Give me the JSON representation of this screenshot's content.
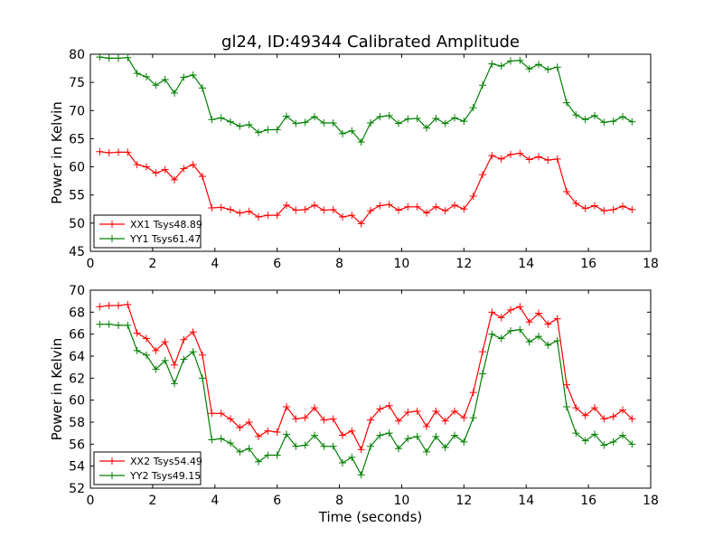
{
  "chart_data": [
    {
      "type": "line",
      "title": "gl24, ID:49344 Calibrated Amplitude",
      "xlabel": "",
      "ylabel": "Power in Kelvin",
      "xlim": [
        0,
        18
      ],
      "ylim": [
        45,
        80
      ],
      "xticks": [
        0,
        2,
        4,
        6,
        8,
        10,
        12,
        14,
        16,
        18
      ],
      "yticks": [
        45,
        50,
        55,
        60,
        65,
        70,
        75,
        80
      ],
      "grid": false,
      "legend_position": "lower-left",
      "x": [
        0.3,
        0.6,
        0.9,
        1.2,
        1.5,
        1.8,
        2.1,
        2.4,
        2.7,
        3.0,
        3.3,
        3.6,
        3.9,
        4.2,
        4.5,
        4.8,
        5.1,
        5.4,
        5.7,
        6.0,
        6.3,
        6.6,
        6.9,
        7.2,
        7.5,
        7.8,
        8.1,
        8.4,
        8.7,
        9.0,
        9.3,
        9.6,
        9.9,
        10.2,
        10.5,
        10.8,
        11.1,
        11.4,
        11.7,
        12.0,
        12.3,
        12.6,
        12.9,
        13.2,
        13.5,
        13.8,
        14.1,
        14.4,
        14.7,
        15.0,
        15.3,
        15.6,
        15.9,
        16.2,
        16.5,
        16.8,
        17.1,
        17.4
      ],
      "series": [
        {
          "name": "XX1 Tsys48.89",
          "color": "#ff0000",
          "values": [
            62.7,
            62.5,
            62.6,
            62.6,
            60.4,
            60.0,
            58.9,
            59.5,
            57.7,
            59.7,
            60.4,
            58.3,
            52.7,
            52.8,
            52.4,
            51.8,
            52.1,
            51.1,
            51.4,
            51.4,
            53.2,
            52.3,
            52.4,
            53.2,
            52.3,
            52.4,
            51.1,
            51.4,
            49.9,
            52.2,
            53.1,
            53.3,
            52.3,
            52.9,
            52.9,
            51.8,
            52.9,
            52.2,
            53.2,
            52.5,
            54.8,
            58.6,
            62.0,
            61.4,
            62.2,
            62.4,
            61.3,
            61.8,
            61.2,
            61.4,
            55.6,
            53.5,
            52.6,
            53.1,
            52.2,
            52.4,
            53.0,
            52.4
          ]
        },
        {
          "name": "YY1 Tsys61.47",
          "color": "#007f00",
          "values": [
            79.5,
            79.3,
            79.3,
            79.4,
            76.6,
            76.0,
            74.5,
            75.5,
            73.1,
            75.9,
            76.3,
            74.0,
            68.4,
            68.7,
            68.0,
            67.2,
            67.5,
            66.1,
            66.6,
            66.6,
            69.0,
            67.7,
            67.9,
            68.9,
            67.8,
            67.8,
            65.9,
            66.4,
            64.4,
            67.8,
            68.9,
            69.1,
            67.7,
            68.5,
            68.6,
            66.9,
            68.6,
            67.7,
            68.7,
            68.1,
            70.5,
            74.5,
            78.3,
            77.9,
            78.8,
            78.9,
            77.4,
            78.2,
            77.3,
            77.7,
            71.4,
            69.2,
            68.4,
            69.1,
            67.9,
            68.1,
            68.9,
            68.0
          ]
        }
      ]
    },
    {
      "type": "line",
      "title": "",
      "xlabel": "Time (seconds)",
      "ylabel": "Power in Kelvin",
      "xlim": [
        0,
        18
      ],
      "ylim": [
        52,
        70
      ],
      "xticks": [
        0,
        2,
        4,
        6,
        8,
        10,
        12,
        14,
        16,
        18
      ],
      "yticks": [
        52,
        54,
        56,
        58,
        60,
        62,
        64,
        66,
        68,
        70
      ],
      "grid": false,
      "legend_position": "lower-left",
      "x": [
        0.3,
        0.6,
        0.9,
        1.2,
        1.5,
        1.8,
        2.1,
        2.4,
        2.7,
        3.0,
        3.3,
        3.6,
        3.9,
        4.2,
        4.5,
        4.8,
        5.1,
        5.4,
        5.7,
        6.0,
        6.3,
        6.6,
        6.9,
        7.2,
        7.5,
        7.8,
        8.1,
        8.4,
        8.7,
        9.0,
        9.3,
        9.6,
        9.9,
        10.2,
        10.5,
        10.8,
        11.1,
        11.4,
        11.7,
        12.0,
        12.3,
        12.6,
        12.9,
        13.2,
        13.5,
        13.8,
        14.1,
        14.4,
        14.7,
        15.0,
        15.3,
        15.6,
        15.9,
        16.2,
        16.5,
        16.8,
        17.1,
        17.4
      ],
      "series": [
        {
          "name": "XX2 Tsys54.49",
          "color": "#ff0000",
          "values": [
            68.5,
            68.6,
            68.6,
            68.7,
            66.1,
            65.6,
            64.5,
            65.3,
            63.2,
            65.5,
            66.2,
            64.1,
            58.8,
            58.8,
            58.3,
            57.5,
            58.0,
            56.7,
            57.2,
            57.1,
            59.4,
            58.3,
            58.4,
            59.3,
            58.2,
            58.3,
            56.8,
            57.2,
            55.5,
            58.2,
            59.2,
            59.5,
            58.1,
            58.9,
            59.0,
            57.6,
            59.0,
            58.1,
            59.0,
            58.4,
            60.7,
            64.4,
            68.0,
            67.5,
            68.2,
            68.5,
            67.1,
            67.9,
            66.9,
            67.4,
            61.4,
            59.3,
            58.6,
            59.3,
            58.3,
            58.5,
            59.1,
            58.3
          ]
        },
        {
          "name": "YY2 Tsys49.15",
          "color": "#007f00",
          "values": [
            66.9,
            66.9,
            66.8,
            66.8,
            64.5,
            64.1,
            62.8,
            63.6,
            61.5,
            63.7,
            64.4,
            62.0,
            56.4,
            56.5,
            56.1,
            55.3,
            55.6,
            54.4,
            55.0,
            55.0,
            56.9,
            55.8,
            55.9,
            56.8,
            55.8,
            55.8,
            54.3,
            54.8,
            53.2,
            55.8,
            56.8,
            57.0,
            55.6,
            56.5,
            56.7,
            55.3,
            56.7,
            55.7,
            56.8,
            56.2,
            58.4,
            62.4,
            66.0,
            65.6,
            66.3,
            66.4,
            65.3,
            65.8,
            65.0,
            65.4,
            59.4,
            57.0,
            56.3,
            56.9,
            55.9,
            56.2,
            56.8,
            56.0
          ]
        }
      ]
    }
  ]
}
